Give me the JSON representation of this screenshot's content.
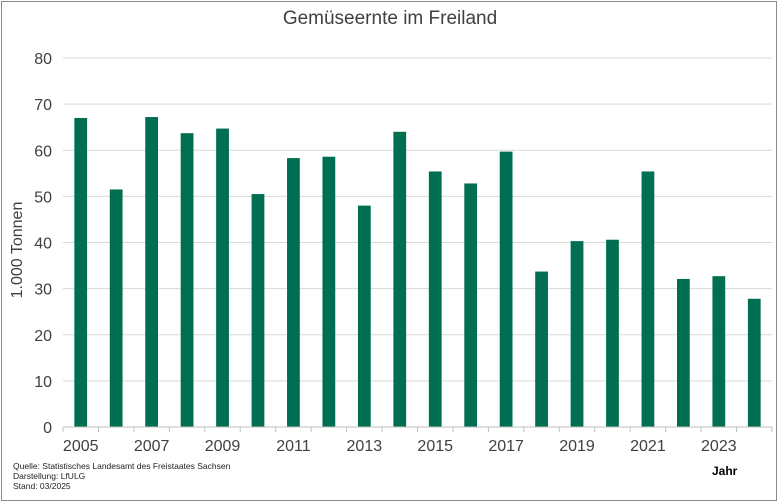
{
  "chart_data": {
    "type": "bar",
    "title": "Gemüseernte im Freiland",
    "xlabel": "Jahr",
    "ylabel": "1.000 Tonnen",
    "categories": [
      "2005",
      "2006",
      "2007",
      "2008",
      "2009",
      "2010",
      "2011",
      "2012",
      "2013",
      "2014",
      "2015",
      "2016",
      "2017",
      "2018",
      "2019",
      "2020",
      "2021",
      "2022",
      "2023",
      "2024"
    ],
    "x_tick_labels": [
      "2005",
      "2007",
      "2009",
      "2011",
      "2013",
      "2015",
      "2017",
      "2019",
      "2021",
      "2023"
    ],
    "values": [
      67.0,
      51.5,
      67.2,
      63.7,
      64.7,
      50.5,
      58.3,
      58.6,
      48.0,
      64.0,
      55.4,
      52.8,
      59.7,
      33.7,
      40.3,
      40.6,
      55.4,
      32.1,
      32.7,
      27.8
    ],
    "ylim": [
      0,
      80
    ],
    "yticks": [
      0,
      10,
      20,
      30,
      40,
      50,
      60,
      70,
      80
    ],
    "grid": true,
    "bar_color": "#006e50",
    "grid_color": "#d9d9d9"
  },
  "footnotes": {
    "source": "Quelle: Statistisches Landesamt des Freistaates Sachsen",
    "representation": "Darstellung: LfULG",
    "status": "Stand: 03/2025"
  }
}
